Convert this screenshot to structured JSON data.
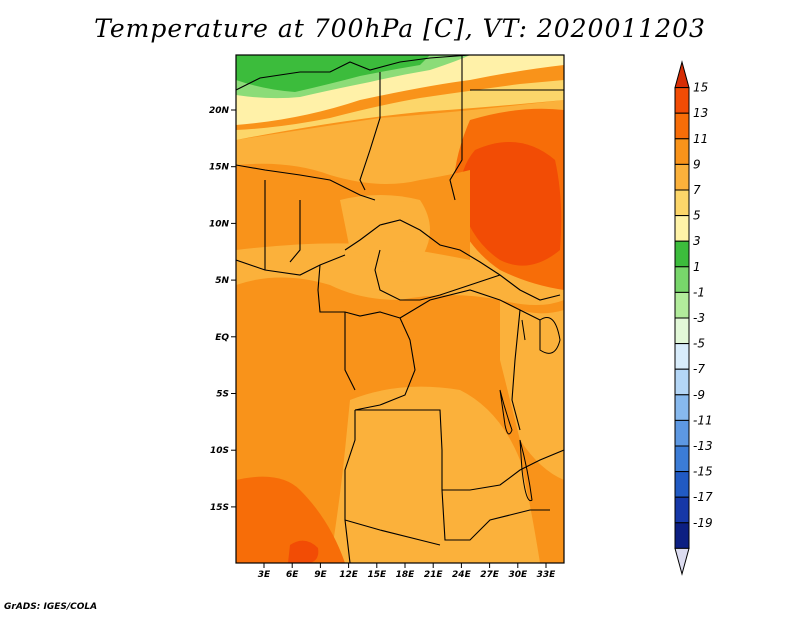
{
  "title": "Temperature at 700hPa [C], VT: 2020011203",
  "footer": "GrADS: IGES/COLA",
  "lat_labels": [
    "20N",
    "15N",
    "10N",
    "5N",
    "EQ",
    "5S",
    "10S",
    "15S"
  ],
  "lon_labels": [
    "3E",
    "6E",
    "9E",
    "12E",
    "15E",
    "18E",
    "21E",
    "24E",
    "27E",
    "30E",
    "33E"
  ],
  "colorbar": {
    "labels": [
      "15",
      "13",
      "11",
      "9",
      "7",
      "5",
      "3",
      "1",
      "-1",
      "-3",
      "-5",
      "-7",
      "-9",
      "-11",
      "-13",
      "-15",
      "-17",
      "-19"
    ],
    "colors": [
      "#d62d05",
      "#f24c05",
      "#f76d08",
      "#f9931a",
      "#fbb13b",
      "#fcd66a",
      "#fff3a8",
      "#3cbc3c",
      "#78d66b",
      "#b2ec9c",
      "#e2f8d8",
      "#d8ecfb",
      "#b4d6f6",
      "#87b9ee",
      "#5d98e2",
      "#3b7cd6",
      "#215ac3",
      "#1638a8",
      "#0c1f82",
      "#dcdcf0"
    ]
  },
  "map": {
    "colors": {
      "green_dark": "#3cbc3c",
      "green_light": "#8cdc78",
      "light_yellow": "#fff1a8",
      "yellow": "#fcd66a",
      "light_orange": "#fbb13b",
      "orange": "#f9931a",
      "dark_orange": "#f76d08",
      "red_orange": "#f24c05"
    }
  }
}
